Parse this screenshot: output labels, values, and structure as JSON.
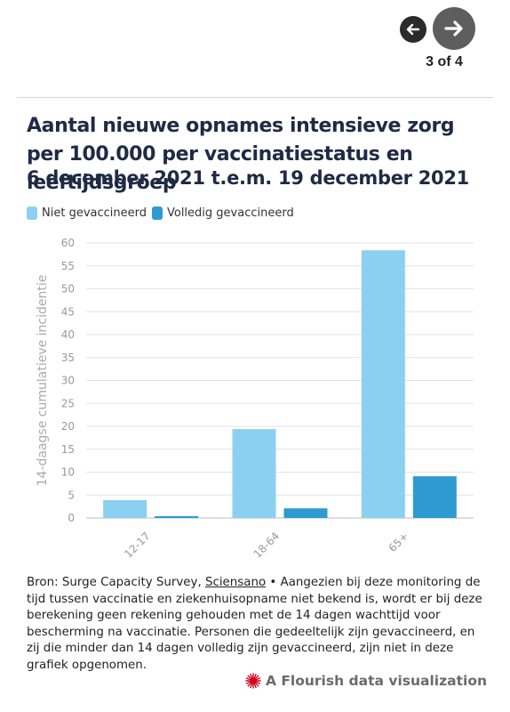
{
  "navigation": {
    "prev_icon": "arrow-left-icon",
    "next_icon": "arrow-right-icon",
    "counter": "3 of 4"
  },
  "header": {
    "title": "Aantal nieuwe opnames intensieve zorg per 100.000 per vaccinatiestatus en leeftijdsgroep",
    "subtitle": "6 december 2021 t.e.m. 19 december 2021"
  },
  "legend": [
    {
      "label": "Niet gevaccineerd",
      "color": "#8bd0f0"
    },
    {
      "label": "Volledig gevaccineerd",
      "color": "#2d9bd0"
    }
  ],
  "chart_data": {
    "type": "bar",
    "categories": [
      "12-17",
      "18-64",
      "65+"
    ],
    "series": [
      {
        "name": "Niet gevaccineerd",
        "values": [
          3.9,
          19.4,
          58.4
        ]
      },
      {
        "name": "Volledig gevaccineerd",
        "values": [
          0.4,
          2.1,
          9.1
        ]
      }
    ],
    "ylabel": "14-daagse cumulatieve incidentie",
    "ylim": [
      0,
      60
    ],
    "yticks": [
      0,
      5,
      10,
      15,
      20,
      25,
      30,
      35,
      40,
      45,
      50,
      55,
      60
    ],
    "grid": true,
    "legend_position": "top-left"
  },
  "footer": {
    "source_prefix": "Bron: Surge Capacity Survey, ",
    "source_link": "Sciensano",
    "source_note": " • Aangezien bij deze monitoring de tijd tussen vaccinatie en ziekenhuisopname niet bekend is, wordt er bij deze berekening geen rekening gehouden met de 14 dagen wachttijd voor bescherming na vaccinatie. Personen die gedeeltelijk zijn gevaccineerd, en zij die minder dan 14 dagen volledig zijn gevaccineerd, zijn niet in deze grafiek opgenomen.",
    "credit": "A Flourish data visualization",
    "credit_icon": "flourish-logo-icon"
  }
}
